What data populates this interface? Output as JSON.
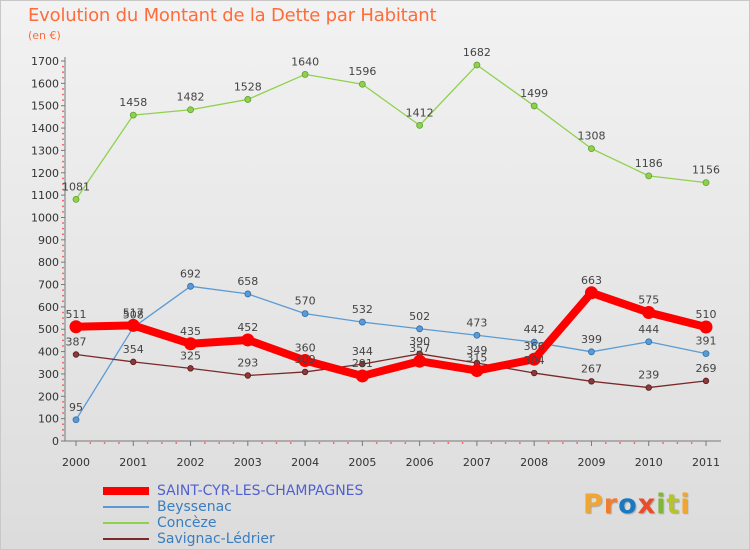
{
  "header": {
    "title": "Evolution du Montant de la Dette par Habitant",
    "unit": "(en €)"
  },
  "brand": {
    "text": "Proxiti",
    "letter_colors": [
      "#f0a630",
      "#ef7d2c",
      "#1c79c0",
      "#e94b2b",
      "#7db83a",
      "#b4c52a",
      "#f0a630"
    ]
  },
  "chart_data": {
    "type": "line",
    "title": "Evolution du Montant de la Dette par Habitant",
    "subtitle": "(en €)",
    "xlabel": "",
    "ylabel": "",
    "x": [
      "2000",
      "2001",
      "2002",
      "2003",
      "2004",
      "2005",
      "2006",
      "2007",
      "2008",
      "2009",
      "2010",
      "2011"
    ],
    "ylim": [
      0,
      1700
    ],
    "yticks": [
      0,
      100,
      200,
      300,
      400,
      500,
      600,
      700,
      800,
      900,
      1000,
      1100,
      1200,
      1300,
      1400,
      1500,
      1600,
      1700
    ],
    "grid": false,
    "legend_position": "bottom-left",
    "series": [
      {
        "name": "SAINT-CYR-LES-CHAMPAGNES",
        "color": "#ff0000",
        "values": [
          511,
          517,
          435,
          452,
          360,
          291,
          357,
          315,
          366,
          663,
          575,
          510
        ],
        "labels": [
          "511",
          "517",
          "435",
          "452",
          "360",
          "291",
          "357",
          "315",
          "366",
          "663",
          "575",
          "510"
        ]
      },
      {
        "name": "Beyssenac",
        "color": "#5b9bd5",
        "values": [
          95,
          508,
          692,
          658,
          570,
          532,
          502,
          473,
          442,
          399,
          444,
          391
        ],
        "labels": [
          "95",
          "508",
          "692",
          "658",
          "570",
          "532",
          "502",
          "473",
          "442",
          "399",
          "444",
          "391"
        ]
      },
      {
        "name": "Concèze",
        "color": "#8fd14f",
        "values": [
          1081,
          1458,
          1482,
          1528,
          1640,
          1596,
          1412,
          1682,
          1499,
          1308,
          1186,
          1156
        ],
        "labels": [
          "1081",
          "1458",
          "1482",
          "1528",
          "1640",
          "1596",
          "1412",
          "1682",
          "1499",
          "1308",
          "1186",
          "1156"
        ]
      },
      {
        "name": "Savignac-Lédrier",
        "color": "#7a2a2a",
        "values": [
          387,
          354,
          325,
          293,
          309,
          344,
          390,
          349,
          304,
          267,
          239,
          269
        ],
        "labels": [
          "387",
          "354",
          "325",
          "293",
          "309",
          "344",
          "390",
          "349",
          "304",
          "267",
          "239",
          "269"
        ]
      }
    ]
  }
}
